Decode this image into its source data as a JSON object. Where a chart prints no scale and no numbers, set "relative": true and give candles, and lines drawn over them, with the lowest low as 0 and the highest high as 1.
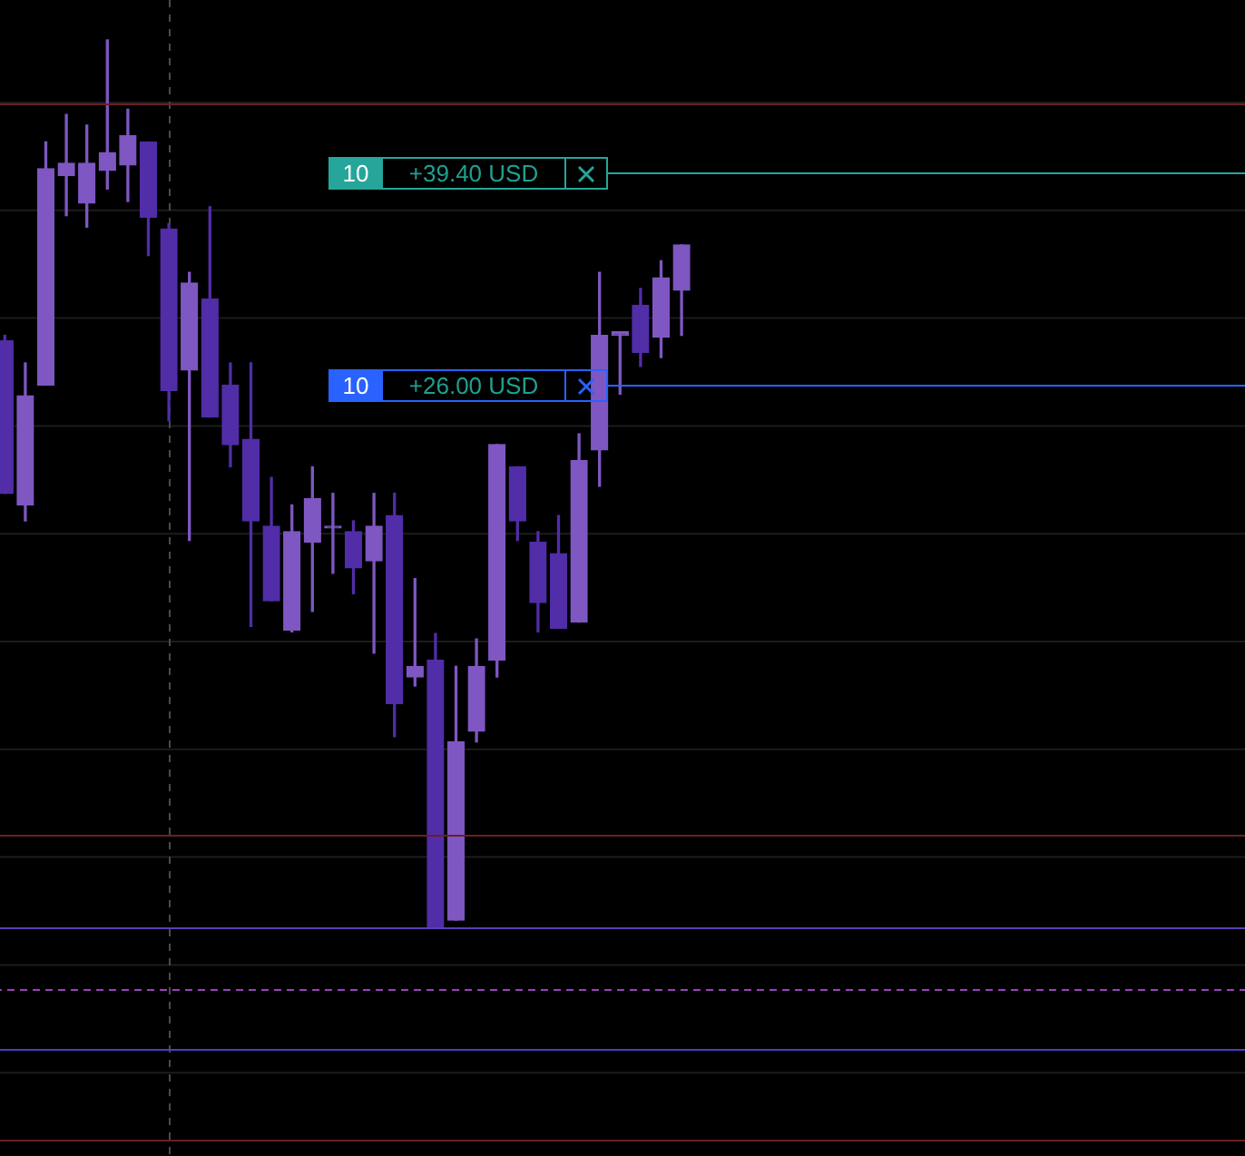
{
  "chart_data": {
    "type": "candlestick",
    "relative": true,
    "grid": true,
    "categories": [
      null,
      null,
      null,
      null,
      null,
      null,
      null,
      null,
      null,
      null,
      null,
      null,
      null,
      null,
      null,
      null,
      null,
      null,
      null,
      null,
      null,
      null,
      null,
      null,
      null,
      null,
      null,
      null,
      null,
      null,
      null,
      null,
      null,
      null
    ],
    "ohlc": [
      [
        0.661,
        0.667,
        0.489,
        0.489
      ],
      [
        0.476,
        0.636,
        0.458,
        0.599
      ],
      [
        0.611,
        0.885,
        0.611,
        0.855
      ],
      [
        0.847,
        0.916,
        0.802,
        0.861
      ],
      [
        0.816,
        0.904,
        0.789,
        0.861
      ],
      [
        0.853,
        1,
        0.832,
        0.873
      ],
      [
        0.859,
        0.922,
        0.818,
        0.892
      ],
      [
        0.885,
        0.885,
        0.757,
        0.8
      ],
      [
        0.787,
        0.793,
        0.571,
        0.605
      ],
      [
        0.628,
        0.738,
        0.436,
        0.726
      ],
      [
        0.708,
        0.812,
        0.575,
        0.575
      ],
      [
        0.611,
        0.636,
        0.519,
        0.544
      ],
      [
        0.55,
        0.636,
        0.339,
        0.458
      ],
      [
        0.452,
        0.507,
        0.368,
        0.368
      ],
      [
        0.335,
        0.476,
        0.333,
        0.446
      ],
      [
        0.434,
        0.519,
        0.356,
        0.483
      ],
      [
        0.452,
        0.489,
        0.399,
        0.452
      ],
      [
        0.446,
        0.458,
        0.376,
        0.405
      ],
      [
        0.413,
        0.489,
        0.309,
        0.452
      ],
      [
        0.464,
        0.489,
        0.215,
        0.252
      ],
      [
        0.282,
        0.393,
        0.272,
        0.294
      ],
      [
        0.301,
        0.331,
        0,
        0
      ],
      [
        0.008,
        0.294,
        0.008,
        0.209
      ],
      [
        0.221,
        0.325,
        0.209,
        0.294
      ],
      [
        0.301,
        0.544,
        0.282,
        0.544
      ],
      [
        0.519,
        0.519,
        0.436,
        0.458
      ],
      [
        0.434,
        0.446,
        0.333,
        0.366
      ],
      [
        0.421,
        0.464,
        0.337,
        0.337
      ],
      [
        0.344,
        0.556,
        0.344,
        0.526
      ],
      [
        0.538,
        0.738,
        0.497,
        0.667
      ],
      [
        0.667,
        0.671,
        0.601,
        0.671
      ],
      [
        0.701,
        0.72,
        0.632,
        0.648
      ],
      [
        0.665,
        0.751,
        0.642,
        0.732
      ],
      [
        0.718,
        0.769,
        0.667,
        0.769
      ]
    ],
    "colors": [
      "#512da8",
      "#7e57c2",
      "#7e57c2",
      "#7e57c2",
      "#7e57c2",
      "#7e57c2",
      "#7e57c2",
      "#512da8",
      "#512da8",
      "#7e57c2",
      "#512da8",
      "#512da8",
      "#512da8",
      "#512da8",
      "#7e57c2",
      "#7e57c2",
      "#7e57c2",
      "#512da8",
      "#7e57c2",
      "#512da8",
      "#7e57c2",
      "#512da8",
      "#7e57c2",
      "#7e57c2",
      "#7e57c2",
      "#512da8",
      "#512da8",
      "#512da8",
      "#7e57c2",
      "#7e57c2",
      "#7e57c2",
      "#512da8",
      "#7e57c2",
      "#7e57c2"
    ],
    "ref_lines": [
      {
        "axis": "y",
        "value": 0.851,
        "label": "10 +39.40 USD",
        "color": "#26a69a"
      },
      {
        "axis": "y",
        "value": 0.611,
        "label": "10 +26.00 USD",
        "color": "#2962ff"
      },
      {
        "axis": "y",
        "value": 0.928,
        "color": "#6b1f24"
      },
      {
        "axis": "y",
        "value": 0.104,
        "color": "#6b1f24"
      },
      {
        "axis": "y",
        "value": 0,
        "color": "#5a3fb8"
      },
      {
        "axis": "y",
        "value": -0.07,
        "color": "#9c3fc0",
        "line_style": "dashed"
      },
      {
        "axis": "y",
        "value": -0.137,
        "color": "#4a3fc8"
      },
      {
        "axis": "y",
        "value": -0.239,
        "color": "#6b1f24"
      }
    ]
  }
}
